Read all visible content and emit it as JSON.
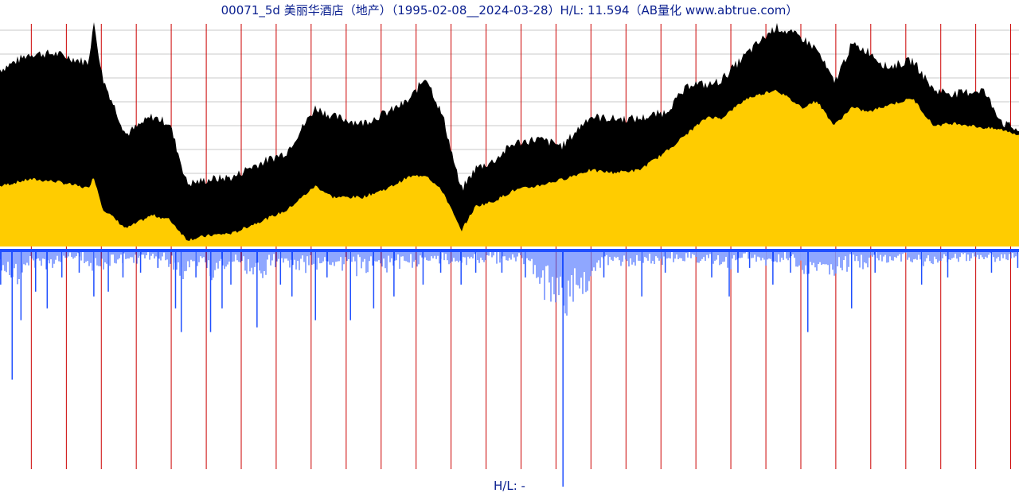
{
  "title": "00071_5d 美丽华酒店（地产）（1995-02-08__2024-03-28）H/L: 11.594（AB量化  www.abtrue.com）",
  "footer": "H/L: -",
  "colors": {
    "range_fill": "#000000",
    "close_fill": "#ffcc00",
    "volume": "#1f4fff",
    "year_line": "#cc0000",
    "grid": "#c8c8c8",
    "title_text": "#0a1f8f"
  },
  "chart_data": {
    "type": "area",
    "title": "00071_5d 美丽华酒店（地产）（1995-02-08__2024-03-28）H/L: 11.594（AB量化  www.abtrue.com）",
    "xlabel": "",
    "ylabel": "",
    "x_range": [
      "1995-02-08",
      "2024-03-28"
    ],
    "high_low_ratio": 11.594,
    "grid": true,
    "year_markers": [
      "1996",
      "1997",
      "1998",
      "1999",
      "2000",
      "2001",
      "2002",
      "2003",
      "2004",
      "2005",
      "2006",
      "2007",
      "2008",
      "2009",
      "2010",
      "2011",
      "2012",
      "2013",
      "2014",
      "2015",
      "2016",
      "2017",
      "2018",
      "2019",
      "2020",
      "2021",
      "2022",
      "2023",
      "2024"
    ],
    "series": [
      {
        "kind": "high",
        "x": [
          "1995-02",
          "1995-12",
          "1996-09",
          "1997-08",
          "1997-10",
          "1998-01",
          "1998-09",
          "1999-06",
          "1999-12",
          "2000-06",
          "2001-02",
          "2001-10",
          "2002-03",
          "2003-04",
          "2004-02",
          "2004-08",
          "2005-06",
          "2006-03",
          "2006-10",
          "2007-04",
          "2007-10",
          "2008-04",
          "2008-09",
          "2009-03",
          "2009-10",
          "2010-06",
          "2011-03",
          "2011-12",
          "2012-08",
          "2013-05",
          "2014-02",
          "2014-11",
          "2015-05",
          "2015-09",
          "2016-06",
          "2017-04",
          "2018-01",
          "2018-06",
          "2018-12",
          "2019-06",
          "2019-12",
          "2020-06",
          "2021-03",
          "2021-10",
          "2022-06",
          "2023-03",
          "2023-10",
          "2024-03"
        ],
        "values": [
          0.79,
          0.86,
          0.86,
          0.82,
          1.0,
          0.75,
          0.5,
          0.58,
          0.55,
          0.28,
          0.3,
          0.31,
          0.35,
          0.42,
          0.62,
          0.58,
          0.55,
          0.6,
          0.65,
          0.76,
          0.57,
          0.25,
          0.35,
          0.38,
          0.46,
          0.48,
          0.45,
          0.58,
          0.57,
          0.57,
          0.6,
          0.73,
          0.72,
          0.74,
          0.86,
          0.98,
          0.93,
          0.88,
          0.73,
          0.9,
          0.87,
          0.8,
          0.83,
          0.7,
          0.68,
          0.7,
          0.55,
          0.52
        ]
      },
      {
        "kind": "low",
        "x": [
          "1995-02",
          "1995-12",
          "1996-09",
          "1997-08",
          "1997-10",
          "1998-01",
          "1998-09",
          "1999-06",
          "1999-12",
          "2000-06",
          "2001-02",
          "2001-10",
          "2002-03",
          "2003-04",
          "2004-02",
          "2004-08",
          "2005-06",
          "2006-03",
          "2006-10",
          "2007-04",
          "2007-10",
          "2008-04",
          "2008-09",
          "2009-03",
          "2009-10",
          "2010-06",
          "2011-03",
          "2011-12",
          "2012-08",
          "2013-05",
          "2014-02",
          "2014-11",
          "2015-05",
          "2015-09",
          "2016-06",
          "2017-04",
          "2018-01",
          "2018-06",
          "2018-12",
          "2019-06",
          "2019-12",
          "2020-06",
          "2021-03",
          "2021-10",
          "2022-06",
          "2023-03",
          "2023-10",
          "2024-03"
        ],
        "values": [
          0.27,
          0.3,
          0.29,
          0.26,
          0.31,
          0.17,
          0.08,
          0.14,
          0.12,
          0.03,
          0.05,
          0.06,
          0.09,
          0.16,
          0.27,
          0.22,
          0.22,
          0.26,
          0.31,
          0.32,
          0.24,
          0.07,
          0.18,
          0.2,
          0.25,
          0.27,
          0.3,
          0.34,
          0.33,
          0.34,
          0.42,
          0.52,
          0.58,
          0.57,
          0.66,
          0.7,
          0.62,
          0.65,
          0.54,
          0.62,
          0.6,
          0.63,
          0.66,
          0.54,
          0.55,
          0.53,
          0.52,
          0.5
        ]
      },
      {
        "kind": "volume",
        "x": [
          "1995-02",
          "1995-06",
          "1995-09",
          "1996-02",
          "1996-06",
          "1996-11",
          "1997-05",
          "1997-10",
          "1998-03",
          "1998-08",
          "1999-02",
          "1999-08",
          "2000-02",
          "2000-04",
          "2000-09",
          "2001-02",
          "2001-06",
          "2001-09",
          "2002-06",
          "2003-02",
          "2003-06",
          "2004-02",
          "2004-06",
          "2005-02",
          "2005-10",
          "2006-05",
          "2007-03",
          "2007-09",
          "2008-04",
          "2008-09",
          "2009-06",
          "2010-02",
          "2011-03",
          "2012-05",
          "2013-06",
          "2014-02",
          "2015-06",
          "2015-12",
          "2016-03",
          "2016-07",
          "2017-03",
          "2017-09",
          "2018-03",
          "2019-06",
          "2020-02",
          "2021-06",
          "2022-03",
          "2023-06",
          "2024-03"
        ],
        "values": [
          0.15,
          0.55,
          0.3,
          0.18,
          0.25,
          0.12,
          0.1,
          0.2,
          0.18,
          0.12,
          0.1,
          0.08,
          0.25,
          0.35,
          0.12,
          0.35,
          0.25,
          0.15,
          0.33,
          0.15,
          0.2,
          0.3,
          0.12,
          0.3,
          0.25,
          0.2,
          0.15,
          0.1,
          0.15,
          0.1,
          0.1,
          0.12,
          1.0,
          0.12,
          0.2,
          0.1,
          0.12,
          0.2,
          0.1,
          0.08,
          0.15,
          0.1,
          0.35,
          0.25,
          0.1,
          0.15,
          0.12,
          0.1,
          0.08
        ]
      }
    ]
  }
}
